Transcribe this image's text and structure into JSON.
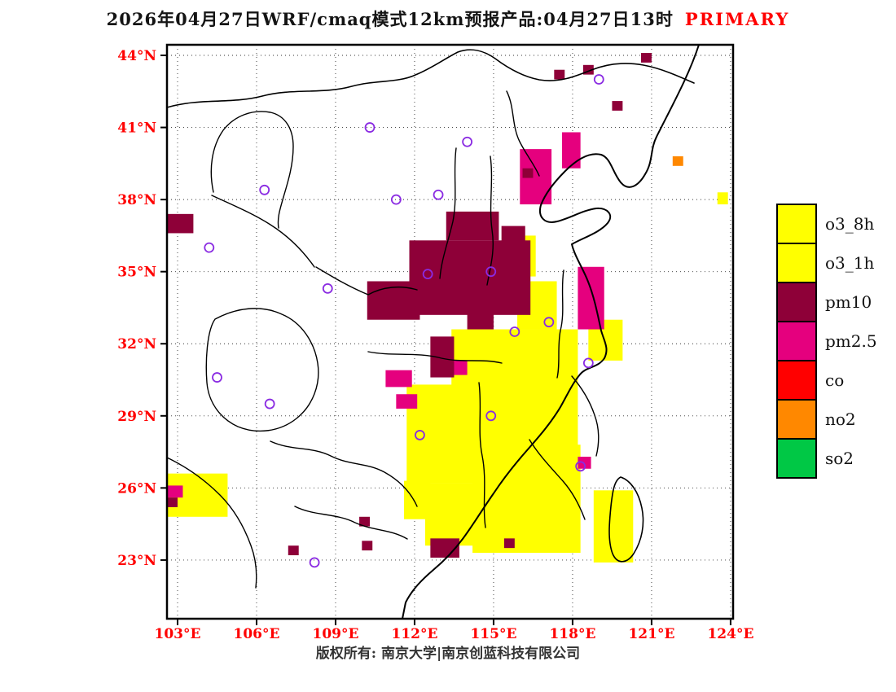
{
  "title": {
    "text": "2026年04月27日WRF/cmaq模式12km预报产品:04月27日13时",
    "tag": "PRIMARY"
  },
  "footer": {
    "text": "版权所有: 南京大学|南京创蓝科技有限公司"
  },
  "colors": {
    "axis_label": "#ff0000",
    "title": "#141414",
    "tag": "#ff0000",
    "footer": "#333333",
    "station": "#8a2be2",
    "grid": "#333333",
    "border": "#000000"
  },
  "legend": {
    "items": [
      {
        "label": "o3_8h",
        "color": "#ffff00"
      },
      {
        "label": "o3_1h",
        "color": "#ffff00"
      },
      {
        "label": "pm10",
        "color": "#8e0038"
      },
      {
        "label": "pm2.5",
        "color": "#e5007e"
      },
      {
        "label": "co",
        "color": "#ff0000"
      },
      {
        "label": "no2",
        "color": "#ff8800"
      },
      {
        "label": "so2",
        "color": "#00c845"
      }
    ]
  },
  "map": {
    "lat_ticks": [
      {
        "label": "44°N",
        "value": 44
      },
      {
        "label": "41°N",
        "value": 41
      },
      {
        "label": "38°N",
        "value": 38
      },
      {
        "label": "35°N",
        "value": 35
      },
      {
        "label": "32°N",
        "value": 32
      },
      {
        "label": "29°N",
        "value": 29
      },
      {
        "label": "26°N",
        "value": 26
      },
      {
        "label": "23°N",
        "value": 23
      }
    ],
    "lon_ticks": [
      {
        "label": "103°E",
        "value": 103
      },
      {
        "label": "106°E",
        "value": 106
      },
      {
        "label": "109°E",
        "value": 109
      },
      {
        "label": "112°E",
        "value": 112
      },
      {
        "label": "115°E",
        "value": 115
      },
      {
        "label": "118°E",
        "value": 118
      },
      {
        "label": "121°E",
        "value": 121
      },
      {
        "label": "124°E",
        "value": 124
      }
    ],
    "patches": [
      {
        "pollutant": "o3",
        "color": "#ffff00",
        "rects": [
          [
            102.6,
            24.8,
            104.9,
            26.6
          ],
          [
            111.7,
            26.2,
            114.6,
            30.3
          ],
          [
            113.4,
            27.6,
            118.2,
            32.6
          ],
          [
            114.2,
            23.3,
            118.3,
            27.8
          ],
          [
            112.4,
            23.6,
            114.4,
            26.2
          ],
          [
            111.6,
            24.7,
            112.6,
            26.3
          ],
          [
            115.9,
            32.6,
            117.4,
            34.6
          ],
          [
            115.8,
            34.8,
            116.6,
            36.5
          ],
          [
            118.6,
            31.3,
            119.9,
            33.0
          ],
          [
            118.8,
            22.9,
            120.3,
            25.9
          ],
          [
            123.5,
            37.8,
            123.9,
            38.3
          ]
        ]
      },
      {
        "pollutant": "pm2.5",
        "color": "#e5007e",
        "rects": [
          [
            116.0,
            37.8,
            117.2,
            40.1
          ],
          [
            117.6,
            39.3,
            118.3,
            40.8
          ],
          [
            118.2,
            32.6,
            119.2,
            35.2
          ],
          [
            110.9,
            30.2,
            111.9,
            30.9
          ],
          [
            111.3,
            29.3,
            112.1,
            29.9
          ],
          [
            113.2,
            30.7,
            114.0,
            31.3
          ],
          [
            118.2,
            26.8,
            118.7,
            27.3
          ],
          [
            102.6,
            25.6,
            103.2,
            26.1
          ]
        ]
      },
      {
        "pollutant": "pm10",
        "color": "#8e0038",
        "rects": [
          [
            111.8,
            33.2,
            116.4,
            36.3
          ],
          [
            110.2,
            33.0,
            112.2,
            34.6
          ],
          [
            113.2,
            36.3,
            115.2,
            37.5
          ],
          [
            115.3,
            35.3,
            116.2,
            36.9
          ],
          [
            112.6,
            30.6,
            113.5,
            32.3
          ],
          [
            114.0,
            32.6,
            115.0,
            33.3
          ],
          [
            102.6,
            36.6,
            103.6,
            37.4
          ],
          [
            116.1,
            38.9,
            116.5,
            39.3
          ],
          [
            119.5,
            41.7,
            119.9,
            42.1
          ],
          [
            120.6,
            43.7,
            121.0,
            44.1
          ],
          [
            118.4,
            43.2,
            118.8,
            43.6
          ],
          [
            117.3,
            43.0,
            117.7,
            43.4
          ],
          [
            107.2,
            23.2,
            107.6,
            23.6
          ],
          [
            109.9,
            24.4,
            110.3,
            24.8
          ],
          [
            110.0,
            23.4,
            110.4,
            23.8
          ],
          [
            112.6,
            23.1,
            113.7,
            23.9
          ],
          [
            115.4,
            23.5,
            115.8,
            23.9
          ],
          [
            102.6,
            25.2,
            103.0,
            25.6
          ]
        ]
      },
      {
        "pollutant": "no2",
        "color": "#ff8800",
        "rects": [
          [
            121.8,
            39.4,
            122.2,
            39.8
          ]
        ]
      }
    ],
    "stations": [
      {
        "lon": 119.0,
        "lat": 43.0
      },
      {
        "lon": 110.3,
        "lat": 41.0
      },
      {
        "lon": 114.0,
        "lat": 40.4
      },
      {
        "lon": 106.3,
        "lat": 38.4
      },
      {
        "lon": 111.3,
        "lat": 38.0
      },
      {
        "lon": 112.9,
        "lat": 38.2
      },
      {
        "lon": 104.2,
        "lat": 36.0
      },
      {
        "lon": 108.7,
        "lat": 34.3
      },
      {
        "lon": 112.5,
        "lat": 34.9
      },
      {
        "lon": 114.9,
        "lat": 35.0
      },
      {
        "lon": 115.8,
        "lat": 32.5
      },
      {
        "lon": 117.1,
        "lat": 32.9
      },
      {
        "lon": 118.6,
        "lat": 31.2
      },
      {
        "lon": 104.5,
        "lat": 30.6
      },
      {
        "lon": 106.5,
        "lat": 29.5
      },
      {
        "lon": 112.2,
        "lat": 28.2
      },
      {
        "lon": 114.9,
        "lat": 29.0
      },
      {
        "lon": 118.3,
        "lat": 26.9
      },
      {
        "lon": 108.2,
        "lat": 22.9
      }
    ]
  }
}
